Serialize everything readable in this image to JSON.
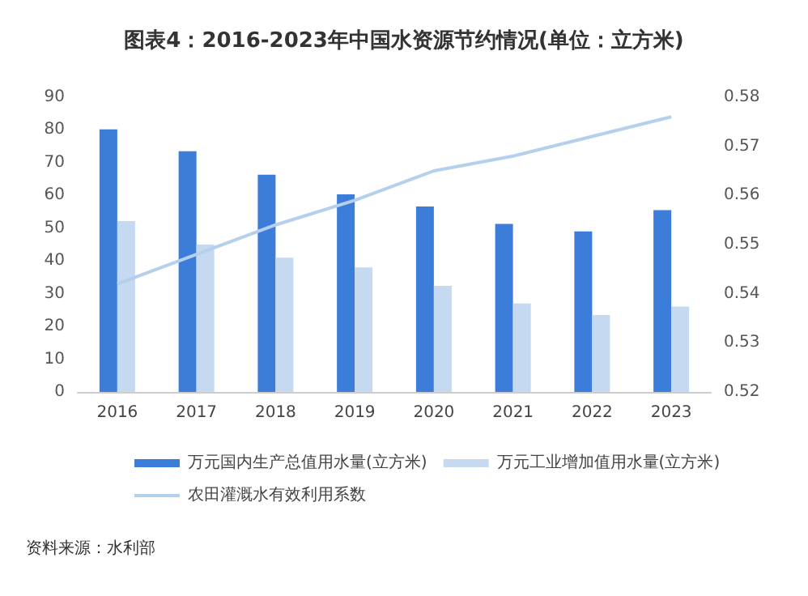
{
  "chart_data": {
    "type": "bar",
    "title": "图表4：2016-2023年中国水资源节约情况(单位：立方米)",
    "categories": [
      "2016",
      "2017",
      "2018",
      "2019",
      "2020",
      "2021",
      "2022",
      "2023"
    ],
    "series": [
      {
        "name": "万元国内生产总值用水量(立方米)",
        "color": "#3b7dd8",
        "values": [
          80.2,
          73.5,
          66.3,
          60.3,
          56.6,
          51.3,
          49,
          55.5
        ]
      },
      {
        "name": "万元工业增加值用水量(立方米)",
        "color": "#c5d9f1",
        "values": [
          52.2,
          45,
          41,
          38,
          32.4,
          27,
          23.5,
          26.1
        ]
      },
      {
        "name": "农田灌溉水有效利用系数",
        "type": "line",
        "axis": "y2",
        "color": "#b4d0ec",
        "values": [
          0.542,
          0.548,
          0.554,
          0.559,
          0.565,
          0.568,
          0.572,
          0.576
        ]
      }
    ],
    "ylim": [
      0,
      90
    ],
    "yticks": [
      0,
      10,
      20,
      30,
      40,
      50,
      60,
      70,
      80,
      90
    ],
    "y2lim": [
      0.52,
      0.58
    ],
    "y2ticks": [
      0.52,
      0.53,
      0.54,
      0.55,
      0.56,
      0.57,
      0.58
    ],
    "grid": false,
    "legend": "bottom",
    "marker": "none",
    "line_style": "solid",
    "annotations": [
      "资料来源：水利部"
    ]
  }
}
